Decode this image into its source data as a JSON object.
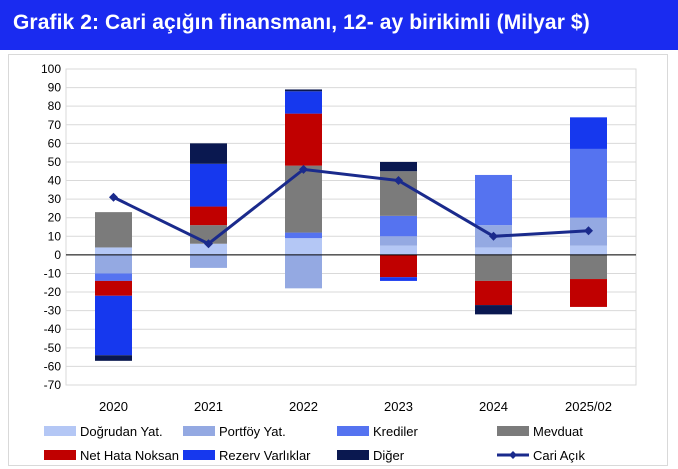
{
  "title": "Grafik 2: Cari açığın finansmanı, 12- ay birikimli (Milyar $)",
  "chart_data": {
    "type": "bar",
    "stacked": true,
    "categories": [
      "2020",
      "2021",
      "2022",
      "2023",
      "2024",
      "2025/02"
    ],
    "ylim": [
      -70,
      100
    ],
    "yticks": [
      100,
      90,
      80,
      70,
      60,
      50,
      40,
      30,
      20,
      10,
      0,
      -10,
      -20,
      -30,
      -40,
      -50,
      -60,
      -70
    ],
    "grid": true,
    "legend_position": "bottom",
    "series": [
      {
        "name": "Doğrudan Yat.",
        "color": "#b4c7f5",
        "values": [
          4,
          6,
          9,
          5,
          4,
          5
        ]
      },
      {
        "name": "Portföy Yat.",
        "color": "#94a9e2",
        "values": [
          -10,
          -7,
          -18,
          5,
          12,
          15
        ]
      },
      {
        "name": "Krediler",
        "color": "#5573f0",
        "values": [
          -4,
          0,
          3,
          11,
          27,
          37
        ]
      },
      {
        "name": "Mevduat",
        "color": "#7b7b7b",
        "values": [
          19,
          10,
          36,
          24,
          -14,
          -13
        ]
      },
      {
        "name": "Net Hata Noksan",
        "color": "#c00000",
        "values": [
          -8,
          10,
          28,
          -12,
          -13,
          -15
        ]
      },
      {
        "name": "Rezerv Varlıklar",
        "color": "#1638ee",
        "values": [
          -32,
          23,
          12,
          -2,
          0,
          17
        ]
      },
      {
        "name": "Diğer",
        "color": "#0a1850",
        "values": [
          -3,
          11,
          1,
          5,
          -5,
          0
        ]
      }
    ],
    "line": {
      "name": "Cari Açık",
      "color": "#1a2a8c",
      "values": [
        31,
        6,
        46,
        40,
        10,
        13
      ]
    }
  }
}
